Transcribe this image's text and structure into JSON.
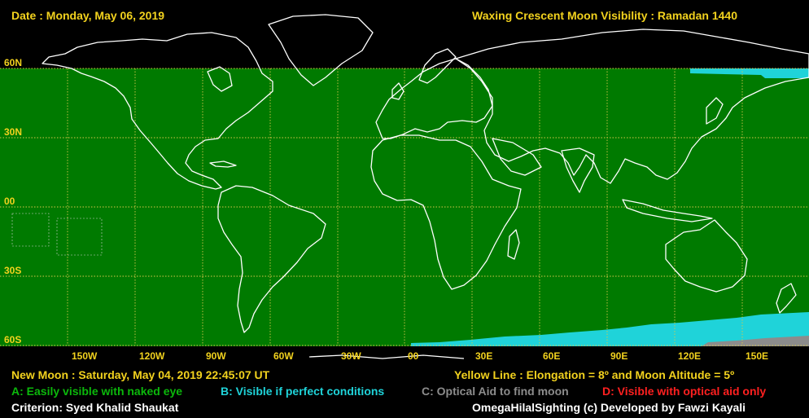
{
  "header": {
    "date_text": "Date : Monday, May 06, 2019",
    "title_text": "Waxing Crescent Moon Visibility : Ramadan 1440"
  },
  "lat_labels": [
    "60N",
    "30N",
    "00",
    "30S",
    "60S"
  ],
  "lon_labels": [
    "150W",
    "120W",
    "90W",
    "60W",
    "30W",
    "00",
    "30E",
    "60E",
    "90E",
    "120E",
    "150E"
  ],
  "footer": {
    "new_moon": "New Moon : Saturday, May 04, 2019  22:45:07  UT",
    "yellow_line": "Yellow Line : Elongation = 8º and Moon Altitude = 5º",
    "legend_a": "A: Easily visible with naked eye",
    "legend_b": "B: Visible if perfect conditions",
    "legend_c": "C: Optical Aid to find moon",
    "legend_d": "D: Visible with optical aid only",
    "criterion": "Criterion: Syed Khalid Shaukat",
    "credit": "OmegaHilalSighting  (c)  Developed by Fawzi Kayali"
  },
  "colors": {
    "zone_a": "#007a00",
    "zone_b": "#1fd3d9",
    "zone_c": "#8c8c8c",
    "zone_d": "#ff2020",
    "label_yellow": "#f2d21e"
  }
}
